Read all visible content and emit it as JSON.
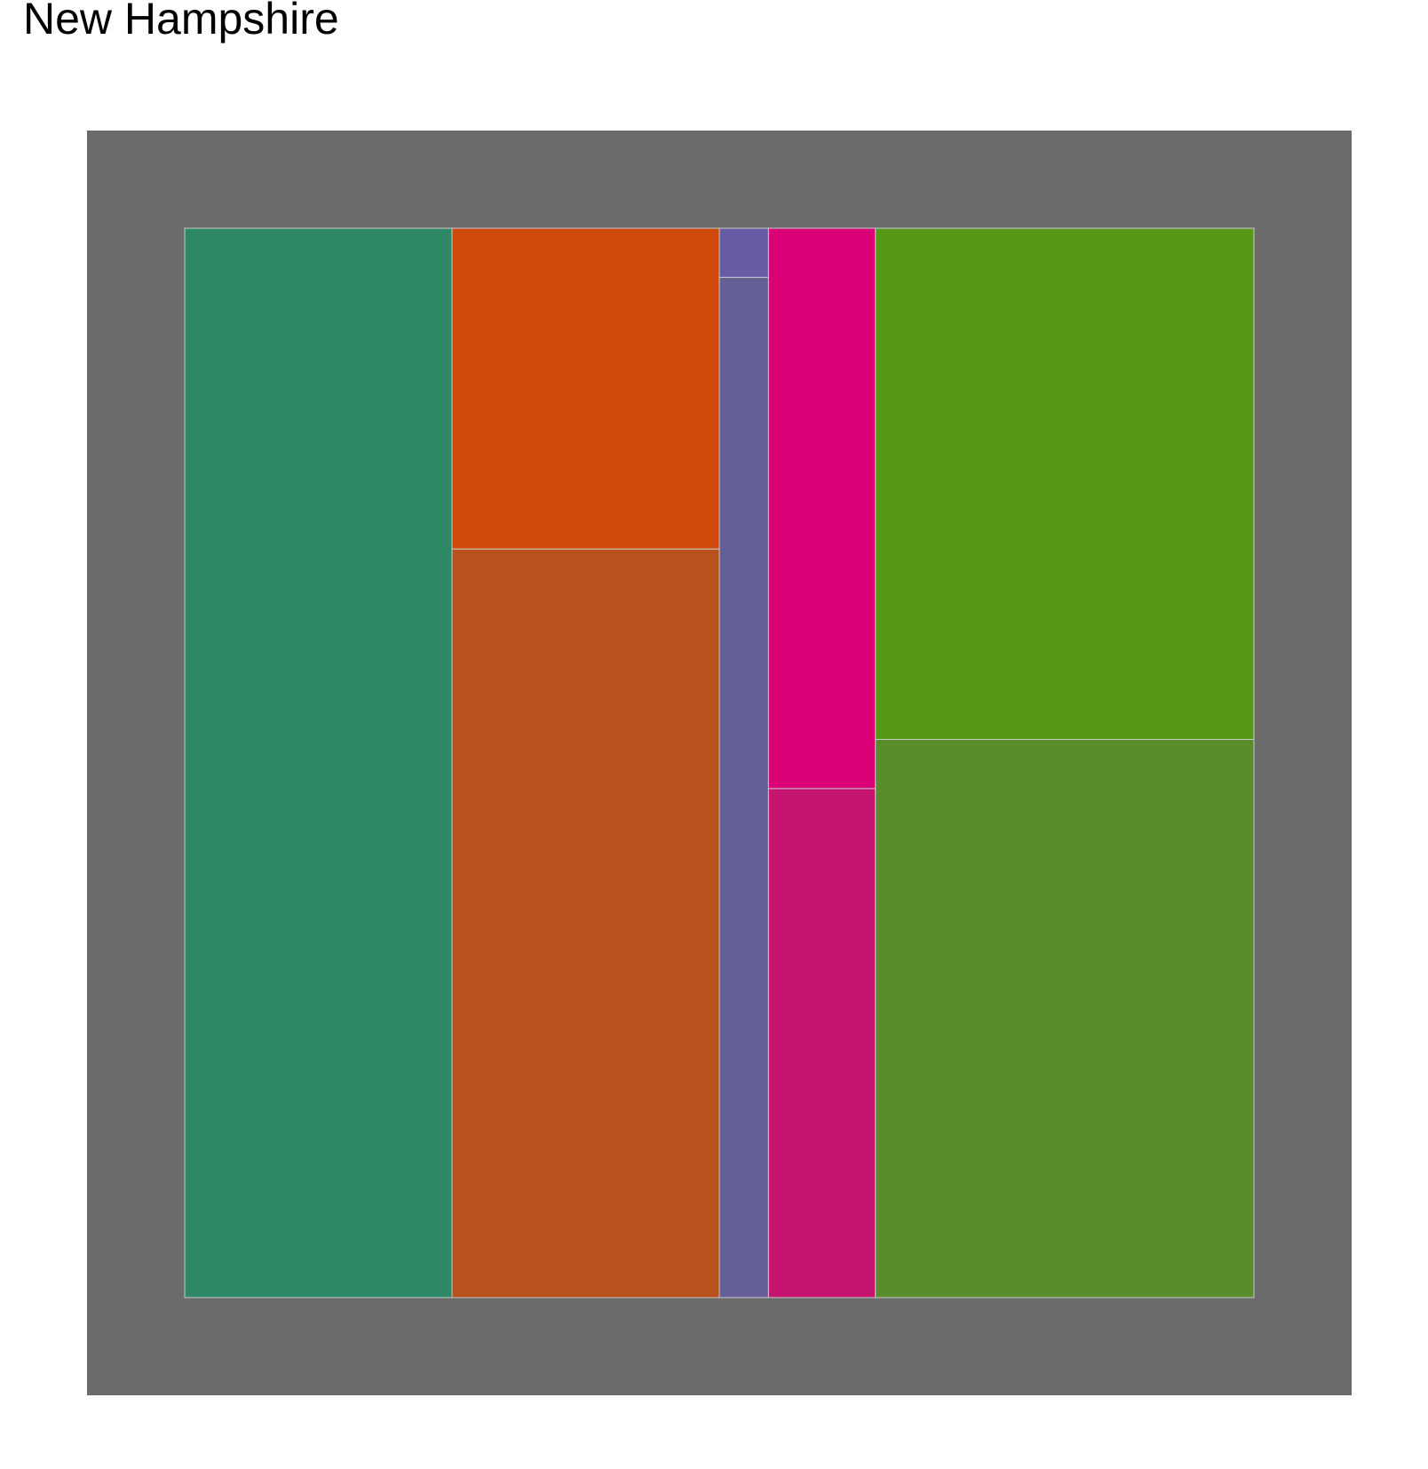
{
  "title": "New Hampshire",
  "colors": {
    "panel_background": "#6b6b6b",
    "tile_border": "#c8c8c8"
  },
  "chart_data": {
    "type": "mosaic",
    "grid": false,
    "legend": "none",
    "columns": [
      {
        "width": 0.25,
        "tiles": [
          {
            "share": 1.0,
            "color": "#2e8866"
          }
        ]
      },
      {
        "width": 0.25,
        "tiles": [
          {
            "share": 0.3,
            "color": "#cd4a0b"
          },
          {
            "share": 0.7,
            "color": "#b8511e"
          }
        ]
      },
      {
        "width": 0.046,
        "tiles": [
          {
            "share": 0.046,
            "color": "#655ca4"
          },
          {
            "share": 0.954,
            "color": "#645f95"
          }
        ]
      },
      {
        "width": 0.1,
        "tiles": [
          {
            "share": 0.524,
            "color": "#db0278"
          },
          {
            "share": 0.476,
            "color": "#c51570"
          }
        ]
      },
      {
        "width": 0.354,
        "tiles": [
          {
            "share": 0.478,
            "color": "#589819"
          },
          {
            "share": 0.522,
            "color": "#598d2b"
          }
        ]
      }
    ]
  }
}
